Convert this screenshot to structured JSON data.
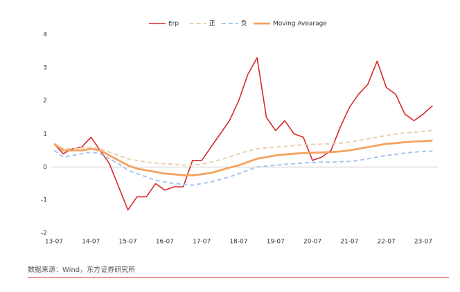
{
  "chart_data": {
    "type": "line",
    "categories": [
      "13-07",
      null,
      null,
      null,
      "14-07",
      null,
      null,
      null,
      "15-07",
      null,
      null,
      null,
      "16-07",
      null,
      null,
      null,
      "17-07",
      null,
      null,
      null,
      "18-07",
      null,
      null,
      null,
      "19-07",
      null,
      null,
      null,
      "20-07",
      null,
      null,
      null,
      "21-07",
      null,
      null,
      null,
      "22-07",
      null,
      null,
      null,
      "23-07",
      null
    ],
    "series": [
      {
        "name": "Erp",
        "color": "#d7282a",
        "dash": false,
        "width": 1.6,
        "values": [
          0.7,
          0.4,
          0.55,
          0.6,
          0.9,
          0.5,
          0.1,
          -0.6,
          -1.3,
          -0.9,
          -0.9,
          -0.5,
          -0.7,
          -0.6,
          -0.6,
          0.2,
          0.2,
          0.6,
          1.0,
          1.4,
          2.0,
          2.8,
          3.3,
          1.5,
          1.1,
          1.4,
          1.0,
          0.9,
          0.2,
          0.3,
          0.5,
          1.2,
          1.8,
          2.2,
          2.5,
          3.2,
          2.4,
          2.2,
          1.6,
          1.4,
          1.6,
          1.85
        ]
      },
      {
        "name": "正",
        "color": "#e6d2ae",
        "dash": true,
        "width": 2,
        "values": [
          0.7,
          0.55,
          0.55,
          0.58,
          0.6,
          0.55,
          0.45,
          0.35,
          0.25,
          0.2,
          0.15,
          0.12,
          0.1,
          0.08,
          0.06,
          0.05,
          0.08,
          0.15,
          0.22,
          0.3,
          0.4,
          0.48,
          0.55,
          0.58,
          0.6,
          0.62,
          0.65,
          0.67,
          0.68,
          0.69,
          0.7,
          0.72,
          0.75,
          0.8,
          0.85,
          0.9,
          0.95,
          1.0,
          1.03,
          1.05,
          1.08,
          1.1
        ]
      },
      {
        "name": "负",
        "color": "#a8c5f0",
        "dash": true,
        "width": 2,
        "values": [
          0.5,
          0.3,
          0.35,
          0.4,
          0.45,
          0.4,
          0.25,
          0.1,
          -0.1,
          -0.2,
          -0.3,
          -0.4,
          -0.45,
          -0.5,
          -0.52,
          -0.55,
          -0.5,
          -0.45,
          -0.38,
          -0.3,
          -0.2,
          -0.1,
          0.0,
          0.03,
          0.05,
          0.08,
          0.1,
          0.12,
          0.14,
          0.15,
          0.15,
          0.16,
          0.17,
          0.2,
          0.25,
          0.3,
          0.35,
          0.38,
          0.42,
          0.45,
          0.47,
          0.48
        ]
      },
      {
        "name": "Moving Avearage",
        "color": "#f5a25d",
        "dash": false,
        "width": 2.8,
        "values": [
          0.7,
          0.5,
          0.5,
          0.5,
          0.55,
          0.5,
          0.35,
          0.2,
          0.05,
          -0.05,
          -0.1,
          -0.15,
          -0.2,
          -0.22,
          -0.25,
          -0.25,
          -0.22,
          -0.18,
          -0.1,
          -0.02,
          0.05,
          0.15,
          0.25,
          0.3,
          0.35,
          0.38,
          0.4,
          0.42,
          0.43,
          0.44,
          0.45,
          0.47,
          0.5,
          0.55,
          0.6,
          0.65,
          0.7,
          0.72,
          0.75,
          0.77,
          0.78,
          0.8
        ]
      }
    ],
    "ylim": [
      -2,
      4
    ],
    "yticks": [
      -2,
      -1,
      0,
      1,
      2,
      3,
      4
    ],
    "grid": false,
    "legend": "top",
    "source": "数据来源：Wind，东方证券研究所"
  }
}
